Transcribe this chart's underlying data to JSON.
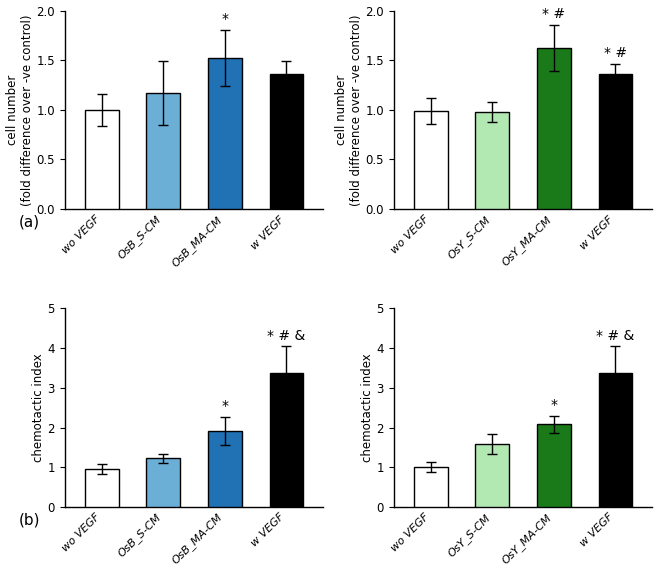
{
  "panels": [
    {
      "row": 0,
      "col": 0,
      "ylabel": "cell number\n(fold difference over -ve control)",
      "ylim": [
        0,
        2.0
      ],
      "yticks": [
        0.0,
        0.5,
        1.0,
        1.5,
        2.0
      ],
      "categories": [
        "wo VEGF",
        "OsB_S-CM",
        "OsB_MA-CM",
        "w VEGF"
      ],
      "values": [
        1.0,
        1.17,
        1.52,
        1.36
      ],
      "errors": [
        0.16,
        0.32,
        0.28,
        0.13
      ],
      "colors": [
        "#ffffff",
        "#6baed6",
        "#2171b5",
        "#000000"
      ],
      "annotations": [
        "",
        "",
        "*",
        ""
      ]
    },
    {
      "row": 0,
      "col": 1,
      "ylabel": "cell number\n(fold difference over -ve control)",
      "ylim": [
        0,
        2.0
      ],
      "yticks": [
        0.0,
        0.5,
        1.0,
        1.5,
        2.0
      ],
      "categories": [
        "wo VEGF",
        "OsY_S-CM",
        "OsY_MA-CM",
        "w VEGF"
      ],
      "values": [
        0.99,
        0.98,
        1.62,
        1.36
      ],
      "errors": [
        0.13,
        0.1,
        0.23,
        0.1
      ],
      "colors": [
        "#ffffff",
        "#b2e8b2",
        "#1a7a1a",
        "#000000"
      ],
      "annotations": [
        "",
        "",
        "* #",
        "* #"
      ]
    },
    {
      "row": 1,
      "col": 0,
      "ylabel": "chemotactic index",
      "ylim": [
        0,
        5
      ],
      "yticks": [
        0,
        1,
        2,
        3,
        4,
        5
      ],
      "categories": [
        "wo VEGF",
        "OsB_S-CM",
        "OsB_MA-CM",
        "w VEGF"
      ],
      "values": [
        0.96,
        1.22,
        1.92,
        3.36
      ],
      "errors": [
        0.13,
        0.12,
        0.35,
        0.68
      ],
      "colors": [
        "#ffffff",
        "#6baed6",
        "#2171b5",
        "#000000"
      ],
      "annotations": [
        "",
        "",
        "*",
        "* # &"
      ]
    },
    {
      "row": 1,
      "col": 1,
      "ylabel": "chemotactic index",
      "ylim": [
        0,
        5
      ],
      "yticks": [
        0,
        1,
        2,
        3,
        4,
        5
      ],
      "categories": [
        "wo VEGF",
        "OsY_S-CM",
        "OsY_MA-CM",
        "w VEGF"
      ],
      "values": [
        1.0,
        1.58,
        2.08,
        3.36
      ],
      "errors": [
        0.13,
        0.25,
        0.22,
        0.68
      ],
      "colors": [
        "#ffffff",
        "#b2e8b2",
        "#1a7a1a",
        "#000000"
      ],
      "annotations": [
        "",
        "",
        "*",
        "* # &"
      ]
    }
  ],
  "bar_width": 0.55,
  "fontsize_ylabel": 8.5,
  "fontsize_xtick": 8.0,
  "fontsize_ytick": 8.5,
  "fontsize_annotation": 10,
  "fontsize_panel_label": 11,
  "panel_labels": [
    "(a)",
    "(b)"
  ],
  "figure_bg": "#ffffff"
}
